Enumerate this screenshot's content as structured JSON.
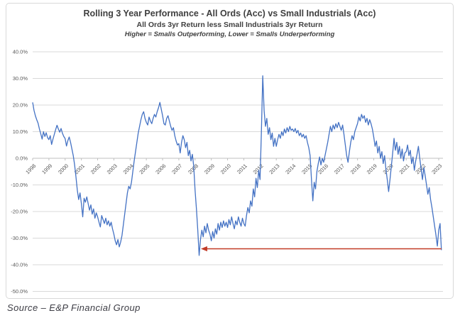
{
  "header": {
    "title": "Rolling 3 Year Performance - All Ords (Acc) vs Small Industrials (Acc)",
    "subtitle": "All Ords 3yr Return less Small Industrials 3yr Return",
    "note": "Higher = Smalls Outperforming, Lower = Smalls Underperforming"
  },
  "source": {
    "label": "Source – E&P Financial Group"
  },
  "chart_data": {
    "type": "line",
    "title": "Rolling 3 Year Performance - All Ords (Acc) vs Small Industrials (Acc)",
    "subtitle": "All Ords 3yr Return less Small Industrials 3yr Return",
    "annotation_note": "Higher = Smalls Outperforming, Lower = Smalls Underperforming",
    "legend": "none",
    "grid": true,
    "ylim": [
      -50,
      40
    ],
    "y_gridline_values": [
      40,
      30,
      20,
      10,
      0,
      -10,
      -20,
      -30,
      -40,
      -50
    ],
    "y_ticks": [
      "40.0%",
      "30.0%",
      "20.0%",
      "10.0%",
      "0.0%",
      "-10.0%",
      "-20.0%",
      "-30.0%",
      "-40.0%",
      "-50.0%"
    ],
    "x_ticks": [
      1998,
      1999,
      2000,
      2001,
      2002,
      2003,
      2004,
      2005,
      2006,
      2007,
      2008,
      2009,
      2010,
      2011,
      2012,
      2013,
      2014,
      2015,
      2016,
      2017,
      2018,
      2019,
      2020,
      2021,
      2022,
      2023
    ],
    "series": [
      {
        "name": "All Ords 3yr return less Small Industrials 3yr return (%)",
        "color": "#4472c4",
        "start_year": 1998,
        "points_per_year": 12,
        "values": [
          21.0,
          18.0,
          16.0,
          14.5,
          13.2,
          11.0,
          9.2,
          7.2,
          10.0,
          8.2,
          9.6,
          7.8,
          7.0,
          8.5,
          5.2,
          7.2,
          9.0,
          10.8,
          12.4,
          11.0,
          9.8,
          11.2,
          9.4,
          8.2,
          7.4,
          4.6,
          6.6,
          8.0,
          6.0,
          3.5,
          1.0,
          -2.5,
          -7.0,
          -12.0,
          -15.5,
          -13.0,
          -17.0,
          -22.0,
          -15.0,
          -16.5,
          -14.5,
          -17.0,
          -19.5,
          -17.5,
          -21.0,
          -19.0,
          -22.5,
          -20.5,
          -22.0,
          -24.0,
          -25.8,
          -21.5,
          -23.0,
          -24.5,
          -22.5,
          -25.0,
          -23.5,
          -25.5,
          -24.0,
          -26.5,
          -28.5,
          -31.0,
          -32.5,
          -30.5,
          -33.3,
          -31.5,
          -29.0,
          -25.0,
          -21.0,
          -17.0,
          -13.0,
          -10.5,
          -11.5,
          -9.0,
          -5.0,
          -1.0,
          2.5,
          6.0,
          9.5,
          12.0,
          14.5,
          16.5,
          17.5,
          15.0,
          13.5,
          12.5,
          15.5,
          14.0,
          13.0,
          15.0,
          16.5,
          15.5,
          17.5,
          19.0,
          21.0,
          18.5,
          16.0,
          13.0,
          12.5,
          15.0,
          16.0,
          14.0,
          12.0,
          10.5,
          11.5,
          8.5,
          6.5,
          5.0,
          5.5,
          2.0,
          6.0,
          8.5,
          7.0,
          4.0,
          6.0,
          1.0,
          3.0,
          -1.0,
          1.5,
          -3.0,
          -12.0,
          -19.0,
          -27.0,
          -36.5,
          -30.5,
          -27.0,
          -29.5,
          -25.5,
          -28.0,
          -24.5,
          -27.0,
          -28.5,
          -31.0,
          -27.5,
          -30.0,
          -26.5,
          -28.5,
          -24.5,
          -27.0,
          -24.0,
          -26.0,
          -23.5,
          -25.5,
          -24.0,
          -26.0,
          -23.0,
          -25.0,
          -22.0,
          -24.5,
          -26.5,
          -23.5,
          -25.0,
          -22.0,
          -24.0,
          -25.5,
          -22.5,
          -24.5,
          -25.5,
          -21.5,
          -18.5,
          -20.5,
          -16.0,
          -18.0,
          -11.5,
          -14.5,
          -7.5,
          -11.0,
          -4.5,
          -8.0,
          10.0,
          31.0,
          18.0,
          12.0,
          15.0,
          9.0,
          11.5,
          7.0,
          9.5,
          4.5,
          7.5,
          4.5,
          7.0,
          9.0,
          7.5,
          10.0,
          8.5,
          11.0,
          9.5,
          11.5,
          10.0,
          12.0,
          10.5,
          11.0,
          10.0,
          11.2,
          9.5,
          10.5,
          8.5,
          9.5,
          8.0,
          9.0,
          7.5,
          8.5,
          6.0,
          4.0,
          1.0,
          -8.0,
          -16.0,
          -9.0,
          -11.5,
          -5.0,
          -2.0,
          0.5,
          -2.5,
          0.0,
          -1.5,
          1.0,
          3.5,
          6.0,
          9.0,
          12.0,
          10.0,
          12.5,
          11.0,
          13.0,
          11.5,
          13.5,
          12.0,
          10.5,
          12.5,
          9.0,
          5.0,
          1.0,
          -1.5,
          2.5,
          6.0,
          8.5,
          7.0,
          10.0,
          11.5,
          13.0,
          15.5,
          14.0,
          16.5,
          15.0,
          16.0,
          13.5,
          15.0,
          12.5,
          14.5,
          13.0,
          11.0,
          8.0,
          4.5,
          6.5,
          2.0,
          4.5,
          0.0,
          2.5,
          -2.0,
          1.0,
          -4.0,
          -8.0,
          -12.5,
          -8.0,
          -3.0,
          2.0,
          7.5,
          3.0,
          6.0,
          1.5,
          4.5,
          0.0,
          3.5,
          -1.0,
          2.0,
          2.5,
          5.0,
          1.0,
          3.0,
          -2.0,
          0.5,
          -4.5,
          -1.0,
          1.5,
          4.5,
          0.0,
          -4.0,
          -8.0,
          -3.5,
          -6.5,
          -10.0,
          -13.5,
          -11.0,
          -15.5,
          -18.5,
          -22.0,
          -25.5,
          -29.0,
          -33.0,
          -27.0,
          -24.5,
          -34.5
        ]
      }
    ],
    "annotation": {
      "shape": "horizontal-arrow-left",
      "y_value": -34,
      "from_year": 2023.17,
      "to_year": 2008.4,
      "color": "#c23b27"
    },
    "colors": {
      "line": "#4472c4",
      "grid": "#d9d9d9",
      "axis": "#bfbfbf",
      "tick_label": "#595959",
      "title": "#3f3f3f",
      "arrow": "#c23b27",
      "frame_border": "#d9d9d9"
    }
  }
}
